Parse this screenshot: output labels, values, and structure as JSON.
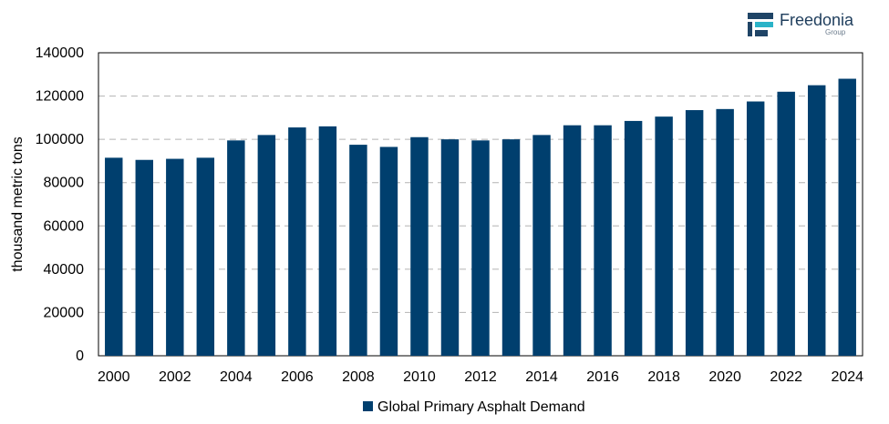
{
  "brand": {
    "name": "Freedonia",
    "sub": "Group",
    "colors": {
      "dark": "#1f4466",
      "accent": "#2bb3c8"
    }
  },
  "chart_data": {
    "type": "bar",
    "ylabel": "thousand metric tons",
    "xlabel": "",
    "ylim": [
      0,
      140000
    ],
    "yticks": [
      0,
      20000,
      40000,
      60000,
      80000,
      100000,
      120000,
      140000
    ],
    "grid": "horizontal-dashed",
    "legend_position": "bottom",
    "bar_color": "#003f6e",
    "categories": [
      "2000",
      "2001",
      "2002",
      "2003",
      "2004",
      "2005",
      "2006",
      "2007",
      "2008",
      "2009",
      "2010",
      "2011",
      "2012",
      "2013",
      "2014",
      "2015",
      "2016",
      "2017",
      "2018",
      "2019",
      "2020",
      "2021",
      "2022",
      "2023",
      "2024"
    ],
    "xtick_labels": [
      "2000",
      "",
      "2002",
      "",
      "2004",
      "",
      "2006",
      "",
      "2008",
      "",
      "2010",
      "",
      "2012",
      "",
      "2014",
      "",
      "2016",
      "",
      "2018",
      "",
      "2020",
      "",
      "2022",
      "",
      "2024"
    ],
    "series": [
      {
        "name": "Global Primary Asphalt Demand",
        "values": [
          91500,
          90500,
          91000,
          91500,
          99500,
          102000,
          105500,
          106000,
          97500,
          96500,
          101000,
          100000,
          99500,
          100000,
          102000,
          106500,
          106500,
          108500,
          110500,
          113500,
          114000,
          117500,
          122000,
          125000,
          128000
        ]
      }
    ]
  }
}
